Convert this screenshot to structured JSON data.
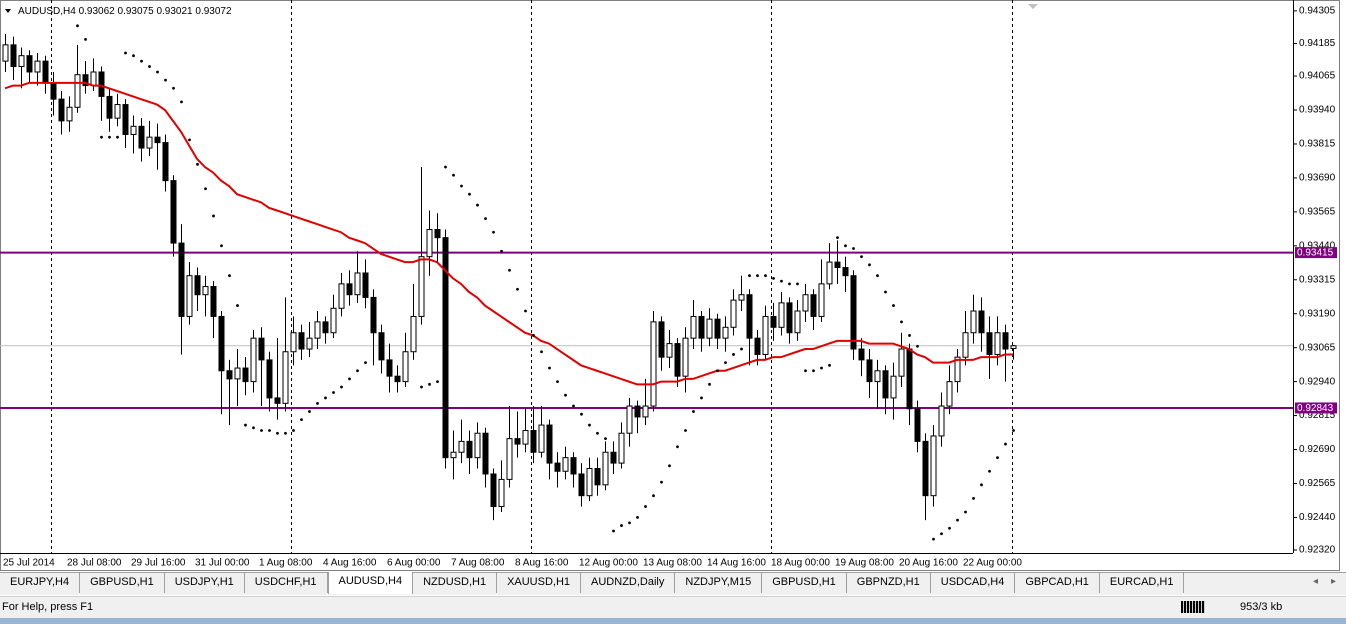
{
  "chart_data": {
    "type": "candlestick",
    "title": "AUDUSD,H4",
    "categories": [
      "25 Jul 2014",
      null,
      null,
      null,
      null,
      null,
      null,
      null,
      "28 Jul 08:00",
      null,
      null,
      null,
      null,
      null,
      null,
      null,
      "29 Jul 16:00",
      null,
      null,
      null,
      null,
      null,
      null,
      null,
      "31 Jul 00:00",
      null,
      null,
      null,
      null,
      null,
      null,
      null,
      "1 Aug 08:00",
      null,
      null,
      null,
      null,
      null,
      null,
      null,
      "4 Aug 16:00",
      null,
      null,
      null,
      null,
      null,
      null,
      null,
      "6 Aug 00:00",
      null,
      null,
      null,
      null,
      null,
      null,
      null,
      "7 Aug 08:00",
      null,
      null,
      null,
      null,
      null,
      null,
      null,
      "8 Aug 16:00",
      null,
      null,
      null,
      null,
      null,
      null,
      null,
      "12 Aug 00:00",
      null,
      null,
      null,
      null,
      null,
      null,
      null,
      "13 Aug 08:00",
      null,
      null,
      null,
      null,
      null,
      null,
      null,
      "14 Aug 16:00",
      null,
      null,
      null,
      null,
      null,
      null,
      null,
      "18 Aug 00:00",
      null,
      null,
      null,
      null,
      null,
      null,
      null,
      "19 Aug 08:00",
      null,
      null,
      null,
      null,
      null,
      null,
      null,
      "20 Aug 16:00",
      null,
      null,
      null,
      null,
      null,
      null,
      null,
      "22 Aug 00:00",
      null,
      null,
      null,
      null,
      null,
      null
    ],
    "open": [
      0.9412,
      0.9418,
      0.941,
      0.9414,
      0.9408,
      0.9412,
      0.9404,
      0.9398,
      0.939,
      0.9395,
      0.9407,
      0.9403,
      0.9408,
      0.9399,
      0.9391,
      0.9396,
      0.9385,
      0.9388,
      0.938,
      0.9384,
      0.9382,
      0.9368,
      0.9345,
      0.9318,
      0.9333,
      0.9326,
      0.9329,
      0.9318,
      0.9298,
      0.9295,
      0.9299,
      0.9294,
      0.931,
      0.9302,
      0.9288,
      0.9286,
      0.9305,
      0.9312,
      0.9306,
      0.931,
      0.9316,
      0.9312,
      0.9321,
      0.933,
      0.9326,
      0.9334,
      0.9325,
      0.9312,
      0.9302,
      0.9296,
      0.9294,
      0.9305,
      0.9318,
      0.934,
      0.935,
      0.9347,
      0.9266,
      0.9268,
      0.9272,
      0.9266,
      0.9275,
      0.926,
      0.9248,
      0.9258,
      0.9273,
      0.9271,
      0.9276,
      0.9268,
      0.9278,
      0.9264,
      0.9261,
      0.9266,
      0.926,
      0.9252,
      0.9262,
      0.9256,
      0.9268,
      0.9264,
      0.9275,
      0.9285,
      0.9281,
      0.9285,
      0.9316,
      0.9303,
      0.9308,
      0.9296,
      0.931,
      0.9318,
      0.931,
      0.9317,
      0.931,
      0.9314,
      0.9324,
      0.9326,
      0.931,
      0.9304,
      0.9318,
      0.9314,
      0.9323,
      0.9312,
      0.932,
      0.9326,
      0.9318,
      0.933,
      0.9338,
      0.9336,
      0.9333,
      0.9306,
      0.9302,
      0.9294,
      0.9298,
      0.9288,
      0.9296,
      0.9306,
      0.9284,
      0.9272,
      0.9252,
      0.9274,
      0.9285,
      0.9294,
      0.9303,
      0.9312,
      0.932,
      0.9312,
      0.9304,
      0.9312,
      0.93062
    ],
    "high": [
      0.9422,
      0.9421,
      0.9417,
      0.9416,
      0.9415,
      0.9414,
      0.9408,
      0.9401,
      0.9399,
      0.9418,
      0.9412,
      0.9413,
      0.941,
      0.9402,
      0.94,
      0.9398,
      0.9392,
      0.9391,
      0.939,
      0.9389,
      0.9385,
      0.937,
      0.9352,
      0.9338,
      0.9336,
      0.9333,
      0.9331,
      0.932,
      0.9302,
      0.9306,
      0.9303,
      0.9313,
      0.9314,
      0.9305,
      0.931,
      0.9325,
      0.9318,
      0.9315,
      0.9316,
      0.932,
      0.9318,
      0.9326,
      0.9334,
      0.9335,
      0.9342,
      0.9339,
      0.9328,
      0.9315,
      0.9308,
      0.93,
      0.9312,
      0.933,
      0.9373,
      0.9357,
      0.9356,
      0.935,
      0.9276,
      0.928,
      0.9276,
      0.9279,
      0.9277,
      0.9262,
      0.9265,
      0.9285,
      0.9283,
      0.9284,
      0.9285,
      0.9285,
      0.928,
      0.9268,
      0.927,
      0.9268,
      0.9264,
      0.9266,
      0.9266,
      0.9272,
      0.9272,
      0.9279,
      0.9288,
      0.9287,
      0.9295,
      0.932,
      0.9318,
      0.9313,
      0.931,
      0.9314,
      0.9324,
      0.932,
      0.9321,
      0.9319,
      0.9318,
      0.9328,
      0.9333,
      0.9328,
      0.9313,
      0.9322,
      0.9323,
      0.9327,
      0.9325,
      0.9324,
      0.933,
      0.9328,
      0.9339,
      0.9345,
      0.9346,
      0.934,
      0.9335,
      0.931,
      0.9306,
      0.9302,
      0.93,
      0.9301,
      0.9312,
      0.9308,
      0.9287,
      0.9275,
      0.9278,
      0.929,
      0.93,
      0.9306,
      0.932,
      0.9326,
      0.9325,
      0.9318,
      0.9318,
      0.9315,
      0.93075
    ],
    "low": [
      0.9408,
      0.9405,
      0.9402,
      0.9404,
      0.9403,
      0.94,
      0.9392,
      0.9385,
      0.9386,
      0.9393,
      0.94,
      0.9401,
      0.939,
      0.9386,
      0.9388,
      0.938,
      0.9378,
      0.9375,
      0.9377,
      0.9372,
      0.9364,
      0.934,
      0.9304,
      0.9315,
      0.932,
      0.9318,
      0.931,
      0.9282,
      0.9278,
      0.9285,
      0.9289,
      0.929,
      0.9285,
      0.9283,
      0.928,
      0.9283,
      0.93,
      0.9302,
      0.9303,
      0.9306,
      0.9308,
      0.931,
      0.9318,
      0.9322,
      0.9323,
      0.9321,
      0.93,
      0.9297,
      0.929,
      0.929,
      0.9292,
      0.9302,
      0.9315,
      0.9333,
      0.9338,
      0.9262,
      0.9258,
      0.9264,
      0.926,
      0.9262,
      0.9255,
      0.9243,
      0.9246,
      0.9255,
      0.9266,
      0.9268,
      0.9264,
      0.9266,
      0.9258,
      0.9255,
      0.9258,
      0.9255,
      0.9248,
      0.925,
      0.9252,
      0.9254,
      0.926,
      0.9262,
      0.927,
      0.9275,
      0.9278,
      0.9283,
      0.9298,
      0.9299,
      0.9292,
      0.929,
      0.9306,
      0.9305,
      0.9307,
      0.9306,
      0.9305,
      0.9311,
      0.932,
      0.93,
      0.93,
      0.9302,
      0.9309,
      0.9311,
      0.9308,
      0.9309,
      0.9316,
      0.9313,
      0.9316,
      0.9328,
      0.933,
      0.9327,
      0.9302,
      0.9296,
      0.9288,
      0.9284,
      0.9282,
      0.928,
      0.9292,
      0.9278,
      0.9268,
      0.9243,
      0.9248,
      0.927,
      0.9282,
      0.929,
      0.93,
      0.9308,
      0.9305,
      0.9295,
      0.93,
      0.9294,
      0.93021
    ],
    "close": [
      0.9418,
      0.941,
      0.9414,
      0.9408,
      0.9412,
      0.9404,
      0.9398,
      0.939,
      0.9395,
      0.9407,
      0.9403,
      0.9408,
      0.9399,
      0.9391,
      0.9396,
      0.9385,
      0.9388,
      0.938,
      0.9384,
      0.9382,
      0.9368,
      0.9345,
      0.9318,
      0.9333,
      0.9326,
      0.9329,
      0.9318,
      0.9298,
      0.9295,
      0.9299,
      0.9294,
      0.931,
      0.9302,
      0.9288,
      0.9286,
      0.9305,
      0.9312,
      0.9306,
      0.931,
      0.9316,
      0.9312,
      0.9321,
      0.933,
      0.9326,
      0.9334,
      0.9325,
      0.9312,
      0.9302,
      0.9296,
      0.9294,
      0.9305,
      0.9318,
      0.934,
      0.935,
      0.9347,
      0.9266,
      0.9268,
      0.9272,
      0.9266,
      0.9275,
      0.926,
      0.9248,
      0.9258,
      0.9273,
      0.9271,
      0.9276,
      0.9268,
      0.9278,
      0.9264,
      0.9261,
      0.9266,
      0.926,
      0.9252,
      0.9262,
      0.9256,
      0.9268,
      0.9264,
      0.9275,
      0.9285,
      0.9281,
      0.9285,
      0.9316,
      0.9303,
      0.9308,
      0.9296,
      0.931,
      0.9318,
      0.931,
      0.9317,
      0.931,
      0.9314,
      0.9324,
      0.9326,
      0.931,
      0.9304,
      0.9318,
      0.9314,
      0.9323,
      0.9312,
      0.932,
      0.9326,
      0.9318,
      0.933,
      0.9338,
      0.9336,
      0.9333,
      0.9306,
      0.9302,
      0.9294,
      0.9298,
      0.9288,
      0.9296,
      0.9306,
      0.9284,
      0.9272,
      0.9252,
      0.9274,
      0.9285,
      0.9294,
      0.9303,
      0.9312,
      0.932,
      0.9312,
      0.9304,
      0.9312,
      0.9306,
      0.93072
    ],
    "up_color": "#ffffff",
    "down_color": "#000000",
    "wick_color": "#000000",
    "ma": {
      "color": "#e00000",
      "values": [
        0.9402,
        0.9403,
        0.9403,
        0.9404,
        0.9404,
        0.9404,
        0.9404,
        0.9404,
        0.9404,
        0.9404,
        0.9404,
        0.9403,
        0.9403,
        0.9402,
        0.9401,
        0.94,
        0.9399,
        0.9398,
        0.9397,
        0.9396,
        0.9394,
        0.939,
        0.9386,
        0.9381,
        0.9376,
        0.9373,
        0.9371,
        0.9368,
        0.9366,
        0.9363,
        0.9362,
        0.9361,
        0.936,
        0.9358,
        0.9357,
        0.9356,
        0.9355,
        0.9354,
        0.9353,
        0.9352,
        0.9351,
        0.935,
        0.9349,
        0.9347,
        0.9346,
        0.9345,
        0.9343,
        0.9341,
        0.934,
        0.9339,
        0.9338,
        0.9338,
        0.9339,
        0.9339,
        0.9338,
        0.9335,
        0.9332,
        0.933,
        0.9327,
        0.9325,
        0.9322,
        0.932,
        0.9318,
        0.9316,
        0.9314,
        0.9312,
        0.9311,
        0.9309,
        0.9308,
        0.9306,
        0.9304,
        0.9302,
        0.93,
        0.9299,
        0.9298,
        0.9297,
        0.9296,
        0.9295,
        0.9294,
        0.9293,
        0.9293,
        0.9293,
        0.9294,
        0.9294,
        0.9294,
        0.9295,
        0.9295,
        0.9296,
        0.9297,
        0.9298,
        0.9298,
        0.9299,
        0.93,
        0.9301,
        0.9302,
        0.9302,
        0.9303,
        0.9303,
        0.9304,
        0.9305,
        0.9306,
        0.9306,
        0.9307,
        0.9308,
        0.9309,
        0.9309,
        0.9309,
        0.9309,
        0.9308,
        0.9308,
        0.9308,
        0.9308,
        0.9307,
        0.9306,
        0.9304,
        0.9303,
        0.9301,
        0.9301,
        0.9301,
        0.9302,
        0.9302,
        0.9302,
        0.9303,
        0.9303,
        0.9303,
        0.9304,
        0.9304
      ]
    },
    "sar": {
      "color": "#000000",
      "values": [
        null,
        null,
        null,
        null,
        null,
        null,
        null,
        null,
        null,
        0.9425,
        0.942,
        null,
        0.9384,
        0.9384,
        0.9384,
        0.9415,
        0.9414,
        0.9412,
        0.941,
        0.9408,
        0.9405,
        0.9402,
        0.9397,
        0.9383,
        0.9374,
        0.9365,
        0.9355,
        0.9344,
        0.9333,
        0.9322,
        0.9278,
        0.9277,
        0.9276,
        0.9276,
        0.9275,
        0.9275,
        0.9276,
        0.928,
        0.9283,
        0.9286,
        0.9288,
        0.929,
        0.9292,
        0.9295,
        0.9298,
        0.9301,
        null,
        null,
        null,
        null,
        null,
        null,
        0.9292,
        0.9293,
        0.9294,
        0.9373,
        0.937,
        0.9366,
        0.9363,
        0.9359,
        0.9354,
        0.9349,
        0.9342,
        0.9335,
        0.9328,
        0.932,
        0.9311,
        0.9305,
        0.9299,
        0.9294,
        0.9289,
        0.9285,
        0.9282,
        0.9278,
        0.9275,
        0.9273,
        0.9239,
        0.9241,
        0.9242,
        0.9244,
        0.9248,
        0.9252,
        0.9257,
        0.9263,
        0.927,
        0.9276,
        0.9283,
        0.9288,
        0.9293,
        0.9298,
        0.9301,
        0.9304,
        0.9306,
        0.9333,
        0.9333,
        0.9333,
        0.9332,
        0.9331,
        0.933,
        0.933,
        0.9298,
        0.9298,
        0.9299,
        0.93,
        0.9347,
        0.9344,
        0.9343,
        0.934,
        0.9337,
        0.9333,
        0.9327,
        0.9322,
        0.9316,
        0.9311,
        0.9307,
        null,
        0.9236,
        0.9238,
        0.924,
        0.9243,
        0.9246,
        0.9251,
        0.9256,
        0.9261,
        0.9266,
        0.9271,
        0.9276
      ]
    },
    "hlines": [
      {
        "value": 0.93415,
        "color": "#800080"
      },
      {
        "value": 0.92843,
        "color": "#800080"
      }
    ],
    "ylim": [
      0.92309,
      0.94334
    ],
    "yticks": [
      0.94305,
      0.94185,
      0.94065,
      {
        "value": 0.9394,
        "label": "0.93940"
      },
      0.93815,
      {
        "value": 0.9369,
        "label": "0.93690"
      },
      0.93565,
      {
        "value": 0.9344,
        "label": "0.93440"
      },
      0.93315,
      {
        "value": 0.9319,
        "label": "0.93190"
      },
      0.93065,
      {
        "value": 0.9294,
        "label": "0.92940"
      },
      0.92815,
      {
        "value": 0.9269,
        "label": "0.92690"
      },
      0.92565,
      {
        "value": 0.9244,
        "label": "0.92440"
      },
      {
        "value": 0.9232,
        "label": "0.92320"
      }
    ]
  },
  "tabs": [
    "EURJPY,H4",
    "GBPUSD,H1",
    "USDJPY,H1",
    "USDCHF,H1",
    "AUDUSD,H4",
    "NZDUSD,H1",
    "XAUUSD,H1",
    "AUDNZD,Daily",
    "NZDJPY,M15",
    "GBPUSD,H1",
    "GBPNZD,H1",
    "USDCAD,H4",
    "GBPCAD,H1",
    "EURCAD,H1"
  ],
  "active_tab": 4,
  "status": {
    "help": "For Help, press F1",
    "traffic": "953/3 kb"
  }
}
